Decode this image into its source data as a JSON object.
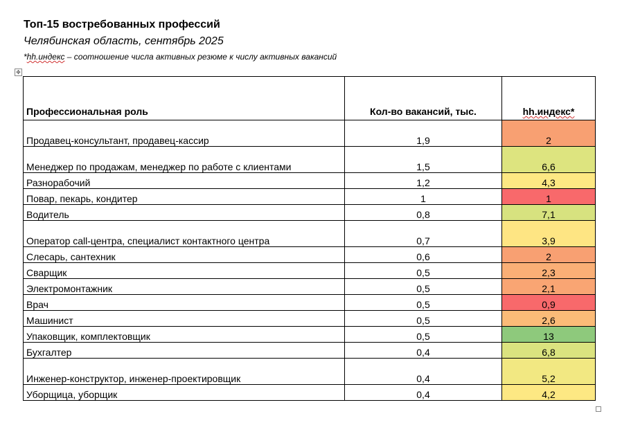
{
  "header": {
    "title": "Топ-15 востребованных профессий",
    "subtitle": "Челябинская область, сентябрь 2025",
    "note_prefix": "*",
    "note_hh": "hh.индекс",
    "note_rest": " – соотношение числа активных резюме к числу активных вакансий"
  },
  "table": {
    "col_role": "Профессиональная роль",
    "col_vacancies": "Кол-во вакансий, тыс.",
    "col_index": "hh.индекс*",
    "rows": [
      {
        "role": "Продавец-консультант, продавец-кассир",
        "vacancies": "1,9",
        "index": "2",
        "color": "#f8a072"
      },
      {
        "role": "Менеджер по продажам, менеджер по работе с клиентами",
        "vacancies": "1,5",
        "index": "6,6",
        "color": "#dde47f"
      },
      {
        "role": "Разнорабочий",
        "vacancies": "1,2",
        "index": "4,3",
        "color": "#fde883"
      },
      {
        "role": "Повар, пекарь, кондитер",
        "vacancies": "1",
        "index": "1",
        "color": "#f8696b"
      },
      {
        "role": "Водитель",
        "vacancies": "0,8",
        "index": "7,1",
        "color": "#d7e27f"
      },
      {
        "role": "Оператор call-центра, специалист контактного центра",
        "vacancies": "0,7",
        "index": "3,9",
        "color": "#fee583"
      },
      {
        "role": "Слесарь, сантехник",
        "vacancies": "0,6",
        "index": "2",
        "color": "#f8a072"
      },
      {
        "role": "Сварщик",
        "vacancies": "0,5",
        "index": "2,3",
        "color": "#faaf76"
      },
      {
        "role": "Электромонтажник",
        "vacancies": "0,5",
        "index": "2,1",
        "color": "#f9a573"
      },
      {
        "role": "Врач",
        "vacancies": "0,5",
        "index": "0,9",
        "color": "#f8696b"
      },
      {
        "role": "Машинист",
        "vacancies": "0,5",
        "index": "2,6",
        "color": "#fbbb78"
      },
      {
        "role": "Упаковщик, комплектовщик",
        "vacancies": "0,5",
        "index": "13",
        "color": "#8ec97c"
      },
      {
        "role": "Бухгалтер",
        "vacancies": "0,4",
        "index": "6,8",
        "color": "#dbe37f"
      },
      {
        "role": "Инженер-конструктор, инженер-проектировщик",
        "vacancies": "0,4",
        "index": "5,2",
        "color": "#f2e882"
      },
      {
        "role": "Уборщица, уборщик",
        "vacancies": "0,4",
        "index": "4,2",
        "color": "#fde883"
      }
    ]
  }
}
